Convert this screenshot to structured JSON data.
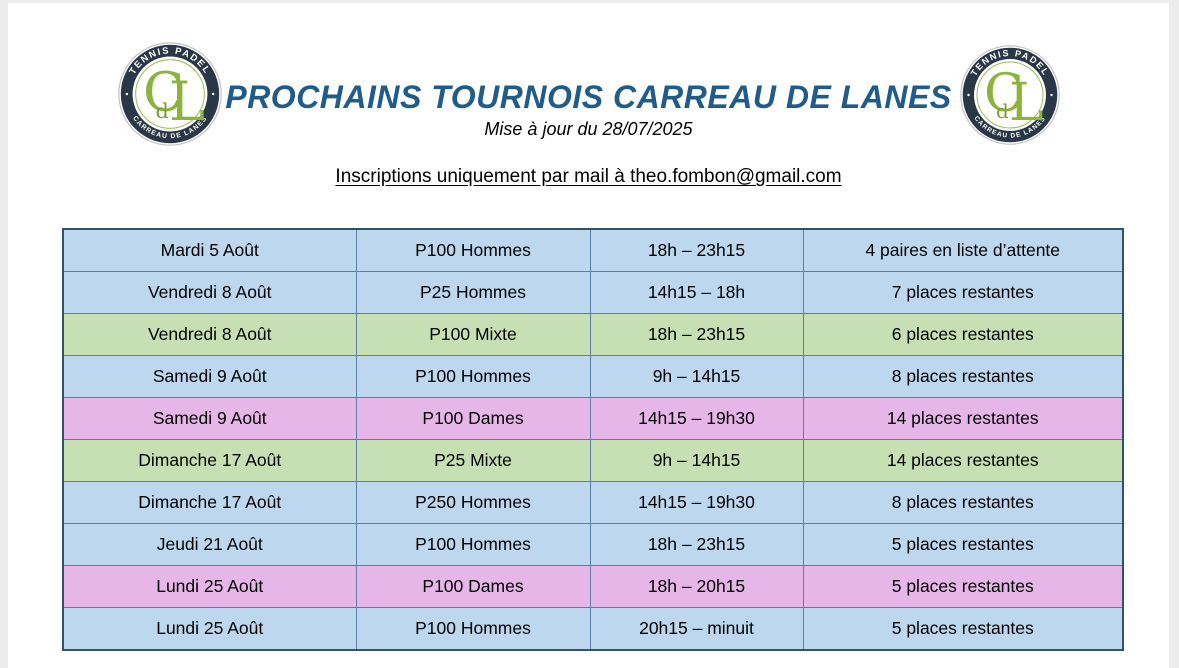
{
  "header": {
    "title": "PROCHAINS TOURNOIS CARREAU DE LANES",
    "subtitle": "Mise à jour du 28/07/2025",
    "mail_line": "Inscriptions uniquement par mail à theo.fombon@gmail.com"
  },
  "logo": {
    "top_text": "TENNIS PADEL",
    "bottom_text": "CARREAU DE LANES",
    "monogram_c": "C",
    "monogram_d": "d",
    "monogram_l": "L"
  },
  "colors": {
    "title": "#1F5C8B",
    "row_blue": "#BDD7EE",
    "row_green": "#C6E0B4",
    "row_pink": "#E7B6E8",
    "border_outer": "#35506F",
    "border_inner": "#5B7DA6",
    "logo_ring": "#2A3747",
    "logo_green": "#8CB43C",
    "logo_green_dark": "#79A02F",
    "logo_inner_circle": "#9CBE58"
  },
  "table": {
    "columns": [
      "date",
      "category",
      "time",
      "availability"
    ],
    "rows": [
      {
        "date": "Mardi 5 Août",
        "category": "P100 Hommes",
        "time": "18h – 23h15",
        "availability": "4 paires en liste d’attente",
        "color": "blue"
      },
      {
        "date": "Vendredi 8 Août",
        "category": "P25 Hommes",
        "time": "14h15 – 18h",
        "availability": "7 places restantes",
        "color": "blue"
      },
      {
        "date": "Vendredi 8 Août",
        "category": "P100 Mixte",
        "time": "18h – 23h15",
        "availability": "6 places restantes",
        "color": "green"
      },
      {
        "date": "Samedi 9 Août",
        "category": "P100 Hommes",
        "time": "9h – 14h15",
        "availability": "8 places restantes",
        "color": "blue"
      },
      {
        "date": "Samedi 9 Août",
        "category": "P100 Dames",
        "time": "14h15 – 19h30",
        "availability": "14 places restantes",
        "color": "pink"
      },
      {
        "date": "Dimanche 17 Août",
        "category": "P25 Mixte",
        "time": "9h – 14h15",
        "availability": "14 places restantes",
        "color": "green"
      },
      {
        "date": "Dimanche 17 Août",
        "category": "P250 Hommes",
        "time": "14h15 – 19h30",
        "availability": "8 places restantes",
        "color": "blue"
      },
      {
        "date": "Jeudi 21 Août",
        "category": "P100 Hommes",
        "time": "18h – 23h15",
        "availability": "5 places restantes",
        "color": "blue"
      },
      {
        "date": "Lundi 25 Août",
        "category": "P100 Dames",
        "time": "18h – 20h15",
        "availability": "5 places restantes",
        "color": "pink"
      },
      {
        "date": "Lundi 25 Août",
        "category": "P100 Hommes",
        "time": "20h15 – minuit",
        "availability": "5 places restantes",
        "color": "blue"
      }
    ]
  }
}
